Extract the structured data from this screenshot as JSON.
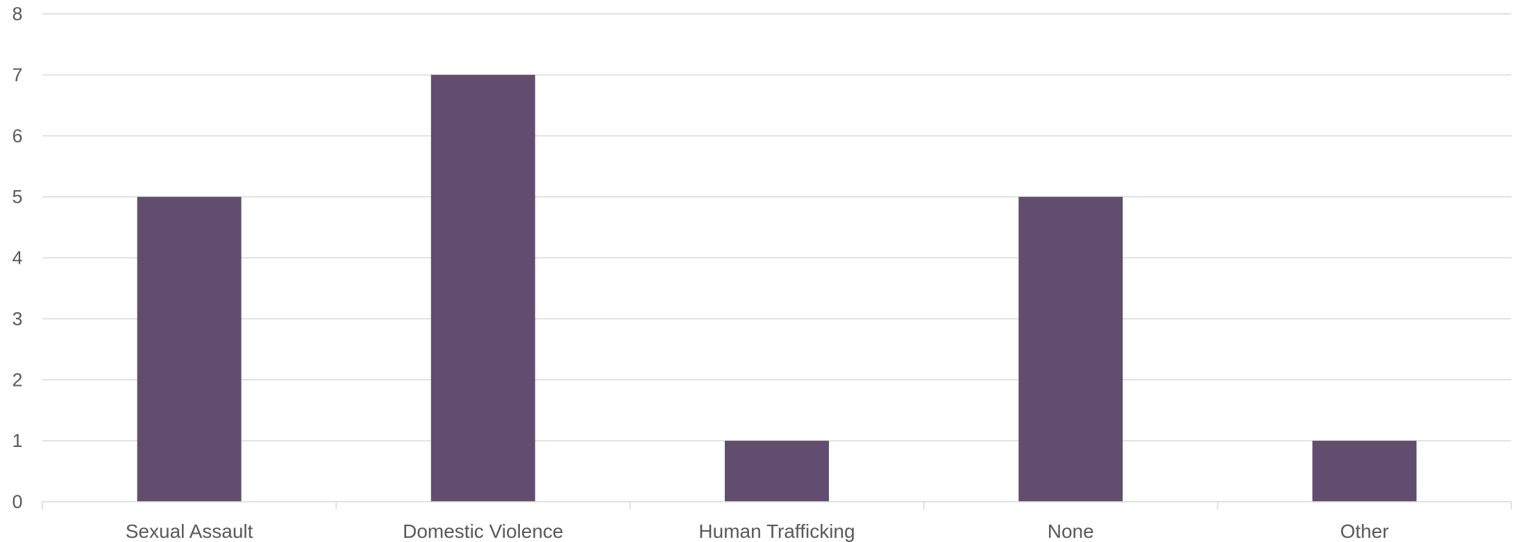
{
  "colors": {
    "bar": "#614e6e",
    "grid": "#d9d9d9",
    "text": "#595959"
  },
  "chart_data": {
    "type": "bar",
    "categories": [
      "Sexual Assault",
      "Domestic Violence",
      "Human Trafficking",
      "None",
      "Other"
    ],
    "values": [
      5,
      7,
      1,
      5,
      1
    ],
    "ylim": [
      0,
      8
    ],
    "yticks": [
      0,
      1,
      2,
      3,
      4,
      5,
      6,
      7,
      8
    ],
    "grid": true,
    "legend": "none"
  }
}
